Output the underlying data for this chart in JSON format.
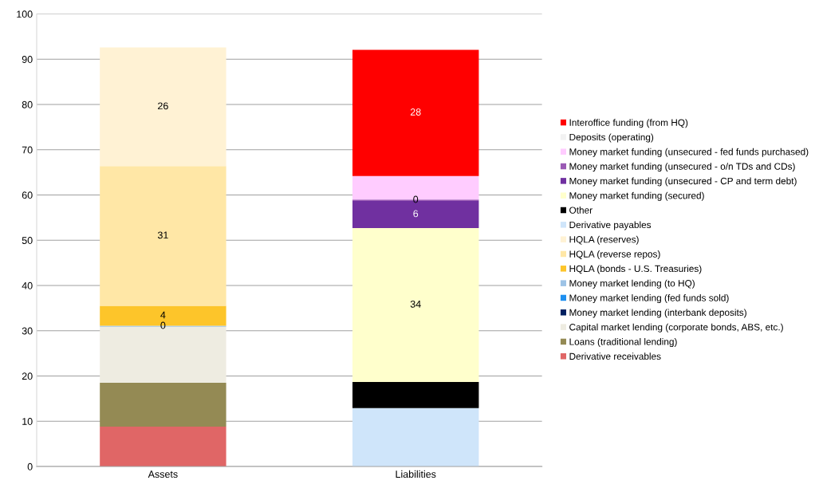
{
  "chart_data": {
    "type": "bar",
    "stacked": true,
    "categories": [
      "Assets",
      "Liabilities"
    ],
    "ylim": [
      0,
      100
    ],
    "yticks": [
      0,
      10,
      20,
      30,
      40,
      50,
      60,
      70,
      80,
      90,
      100
    ],
    "grid": "y",
    "legend": "right",
    "series": [
      {
        "name": "Derivative receivables",
        "color": "#e06666",
        "values": [
          8.8,
          null
        ]
      },
      {
        "name": "Loans (traditional lending)",
        "color": "#948a54",
        "values": [
          9.7,
          null
        ]
      },
      {
        "name": "Capital market lending (corporate bonds, ABS, etc.)",
        "color": "#eeece1",
        "values": [
          12.4,
          null
        ]
      },
      {
        "name": "Money market lending (interbank deposits)",
        "color": "#002060",
        "values": [
          0,
          null
        ]
      },
      {
        "name": "Money market lending (fed funds sold)",
        "color": "#1e90f0",
        "values": [
          0,
          null
        ]
      },
      {
        "name": "Money market lending (to HQ)",
        "color": "#9dc3e6",
        "values": [
          0.2,
          null
        ],
        "value_labels": [
          "0",
          null
        ]
      },
      {
        "name": "HQLA (bonds - U.S. Treasuries)",
        "color": "#fdc52a",
        "values": [
          4.4,
          null
        ],
        "value_labels": [
          "4",
          null
        ]
      },
      {
        "name": "HQLA (reverse repos)",
        "color": "#ffe7a6",
        "values": [
          30.9,
          null
        ],
        "value_labels": [
          "31",
          null
        ]
      },
      {
        "name": "HQLA (reserves)",
        "color": "#fff2d4",
        "values": [
          26.2,
          null
        ],
        "value_labels": [
          "26",
          null
        ]
      },
      {
        "name": "Derivative payables",
        "color": "#cfe5fa",
        "values": [
          null,
          12.9
        ]
      },
      {
        "name": "Other",
        "color": "#000000",
        "values": [
          null,
          5.8
        ]
      },
      {
        "name": "Money market funding (secured)",
        "color": "#ffffcc",
        "values": [
          null,
          34.0
        ],
        "value_labels": [
          null,
          "34"
        ]
      },
      {
        "name": "Money market funding (unsecured - CP and term debt)",
        "color": "#7030a0",
        "values": [
          null,
          6.0
        ],
        "value_labels": [
          null,
          "6"
        ]
      },
      {
        "name": "Money market funding (unsecured - o/n TDs and CDs)",
        "color": "#9a5ab4",
        "values": [
          null,
          0.3
        ],
        "value_labels": [
          null,
          "0"
        ]
      },
      {
        "name": "Money market funding (unsecured - fed funds purchased)",
        "color": "#ffccff",
        "values": [
          null,
          5.2
        ]
      },
      {
        "name": "Deposits (operating)",
        "color": "#f2f2f2",
        "values": [
          null,
          0
        ]
      },
      {
        "name": "Interoffice funding (from HQ)",
        "color": "#ff0000",
        "values": [
          null,
          27.9
        ],
        "value_labels": [
          null,
          "28"
        ]
      }
    ]
  }
}
